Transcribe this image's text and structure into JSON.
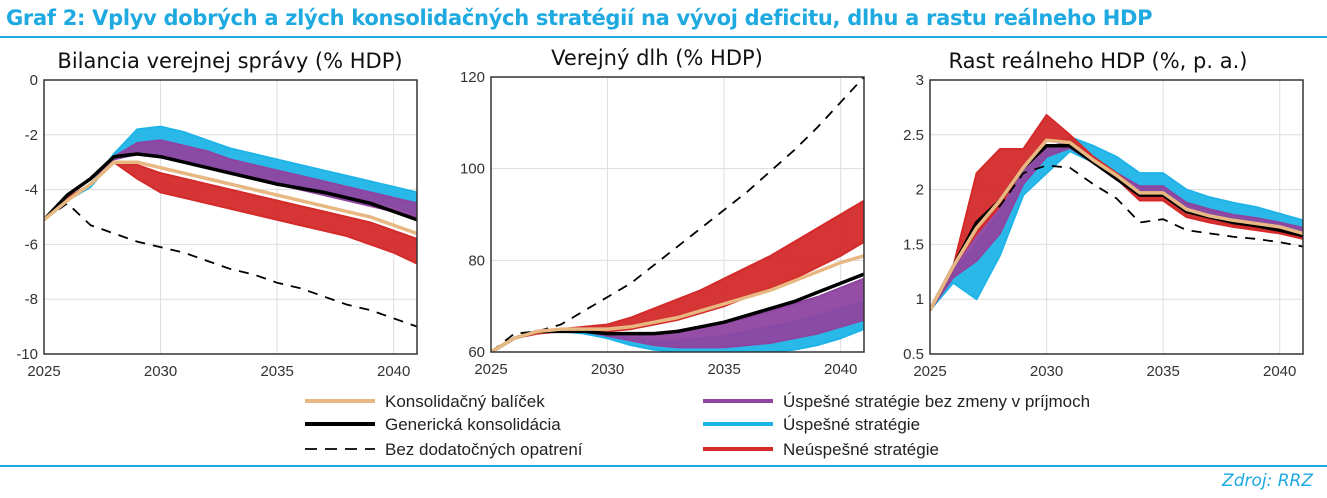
{
  "header": {
    "title": "Graf 2: Vplyv dobrých a zlých konsolidačných stratégií na vývoj deficitu, dlhu a rastu reálneho HDP"
  },
  "source": "Zdroj:  RRZ",
  "colors": {
    "konsolidacny": "#e8b882",
    "genericka": "#000000",
    "bez": "#000000",
    "uspesne_bez_prijmov": "#8e44a0",
    "uspesne": "#1fb4e8",
    "neuspesne": "#d42a2a",
    "accent": "#1ea9e1"
  },
  "legend": [
    {
      "key": "konsolidacny",
      "label": "Konsolidačný balíček",
      "style": "solid"
    },
    {
      "key": "genericka",
      "label": "Generická konsolidácia",
      "style": "solid-thick"
    },
    {
      "key": "bez",
      "label": "Bez dodatočných opatrení",
      "style": "dashed"
    },
    {
      "key": "uspesne_bez_prijmov",
      "label": "Úspešné stratégie bez zmeny v príjmoch",
      "style": "band"
    },
    {
      "key": "uspesne",
      "label": "Úspešné stratégie",
      "style": "band"
    },
    {
      "key": "neuspesne",
      "label": "Neúspešné stratégie",
      "style": "band"
    }
  ],
  "chart_data": [
    {
      "type": "line",
      "title": "Bilancia verejnej správy (% HDP)",
      "x": [
        2025,
        2026,
        2027,
        2028,
        2029,
        2030,
        2031,
        2032,
        2033,
        2034,
        2035,
        2036,
        2037,
        2038,
        2039,
        2040,
        2041
      ],
      "xticks": [
        2025,
        2030,
        2035,
        2040
      ],
      "xlim": [
        2025,
        2041
      ],
      "ylim": [
        -10,
        0
      ],
      "yticks": [
        0,
        -2,
        -4,
        -6,
        -8,
        -10
      ],
      "grid": true,
      "bands": {
        "uspesne": {
          "hi": [
            -5.1,
            -4.4,
            -3.8,
            -2.7,
            -1.8,
            -1.7,
            -1.9,
            -2.2,
            -2.5,
            -2.7,
            -2.9,
            -3.1,
            -3.3,
            -3.5,
            -3.7,
            -3.9,
            -4.1
          ],
          "lo": [
            -5.1,
            -4.4,
            -3.9,
            -2.9,
            -2.7,
            -2.7,
            -2.9,
            -3.1,
            -3.3,
            -3.5,
            -3.7,
            -3.9,
            -4.0,
            -4.2,
            -4.4,
            -4.6,
            -4.9
          ]
        },
        "uspesne_bez_prijmov": {
          "hi": [
            -5.1,
            -4.4,
            -3.8,
            -2.8,
            -2.3,
            -2.2,
            -2.4,
            -2.6,
            -2.9,
            -3.1,
            -3.3,
            -3.5,
            -3.7,
            -3.9,
            -4.1,
            -4.3,
            -4.5
          ],
          "lo": [
            -5.1,
            -4.4,
            -3.8,
            -2.9,
            -2.7,
            -2.8,
            -3.0,
            -3.2,
            -3.4,
            -3.6,
            -3.8,
            -4.0,
            -4.2,
            -4.4,
            -4.6,
            -4.8,
            -5.0
          ]
        },
        "neuspesne": {
          "hi": [
            -5.1,
            -4.3,
            -3.8,
            -3.0,
            -3.1,
            -3.4,
            -3.6,
            -3.8,
            -4.0,
            -4.2,
            -4.4,
            -4.6,
            -4.8,
            -5.0,
            -5.2,
            -5.5,
            -5.8
          ],
          "lo": [
            -5.1,
            -4.4,
            -3.8,
            -3.0,
            -3.6,
            -4.1,
            -4.3,
            -4.5,
            -4.7,
            -4.9,
            -5.1,
            -5.3,
            -5.5,
            -5.7,
            -6.0,
            -6.3,
            -6.7
          ]
        }
      },
      "lines": {
        "bez": [
          -5.1,
          -4.5,
          -5.3,
          -5.6,
          -5.9,
          -6.1,
          -6.3,
          -6.6,
          -6.9,
          -7.1,
          -7.4,
          -7.6,
          -7.9,
          -8.2,
          -8.4,
          -8.7,
          -9.0
        ],
        "genericka": [
          -5.1,
          -4.2,
          -3.6,
          -2.8,
          -2.7,
          -2.8,
          -3.0,
          -3.2,
          -3.4,
          -3.6,
          -3.8,
          -3.95,
          -4.1,
          -4.3,
          -4.5,
          -4.8,
          -5.1
        ],
        "konsolidacny": [
          -5.1,
          -4.4,
          -3.8,
          -3.0,
          -3.0,
          -3.2,
          -3.4,
          -3.6,
          -3.8,
          -4.0,
          -4.2,
          -4.4,
          -4.6,
          -4.8,
          -5.0,
          -5.3,
          -5.6
        ]
      }
    },
    {
      "type": "line",
      "title": "Verejný dlh (% HDP)",
      "x": [
        2025,
        2026,
        2027,
        2028,
        2029,
        2030,
        2031,
        2032,
        2033,
        2034,
        2035,
        2036,
        2037,
        2038,
        2039,
        2040,
        2041
      ],
      "xticks": [
        2025,
        2030,
        2035,
        2040
      ],
      "xlim": [
        2025,
        2041
      ],
      "ylim": [
        60,
        120
      ],
      "yticks": [
        60,
        80,
        100,
        120
      ],
      "grid": true,
      "bands": {
        "uspesne": {
          "hi": [
            60,
            63,
            64.5,
            65,
            65,
            64,
            63,
            62.5,
            62.5,
            63,
            63.5,
            64.5,
            65.5,
            66.5,
            68,
            69.5,
            71
          ],
          "lo": [
            60,
            63,
            64.5,
            64.5,
            64,
            63,
            61.5,
            60.5,
            60,
            60,
            60,
            60,
            60,
            60.5,
            61.5,
            63,
            65
          ]
        },
        "uspesne_bez_prijmov": {
          "hi": [
            60,
            63,
            64.5,
            64.5,
            64.5,
            64,
            64,
            64,
            64.5,
            65.5,
            66.5,
            67.5,
            69,
            70.5,
            72,
            74,
            76
          ],
          "lo": [
            60,
            63,
            64.5,
            64.5,
            64.5,
            63.5,
            62.5,
            61.5,
            61,
            61,
            61,
            61.5,
            62,
            63,
            64,
            65.5,
            67
          ]
        },
        "neuspesne": {
          "hi": [
            60,
            63,
            64,
            65,
            65.5,
            66,
            67.5,
            69.5,
            71.5,
            73.5,
            76,
            78.5,
            81,
            84,
            87,
            90,
            93
          ],
          "lo": [
            60,
            63,
            64,
            64.5,
            64.5,
            64.5,
            65,
            66,
            67,
            68.5,
            70,
            72,
            74,
            76,
            78.5,
            81,
            84
          ]
        }
      },
      "lines": {
        "bez": [
          60,
          64,
          64.5,
          66,
          69,
          72,
          75,
          79,
          83,
          87,
          91,
          95,
          99.5,
          104,
          109,
          114.5,
          120
        ],
        "genericka": [
          60,
          63,
          64.5,
          64.5,
          64.5,
          64,
          64,
          64,
          64.5,
          65.5,
          66.5,
          68,
          69.5,
          71,
          73,
          75,
          77
        ],
        "konsolidacny": [
          60,
          63,
          64.5,
          65,
          65,
          65,
          65.5,
          66.5,
          67.5,
          69,
          70.5,
          72,
          73.5,
          75.5,
          77.5,
          79.5,
          81
        ]
      }
    },
    {
      "type": "line",
      "title": "Rast reálneho HDP (%, p. a.)",
      "x": [
        2025,
        2026,
        2027,
        2028,
        2029,
        2030,
        2031,
        2032,
        2033,
        2034,
        2035,
        2036,
        2037,
        2038,
        2039,
        2040,
        2041
      ],
      "xticks": [
        2025,
        2030,
        2035,
        2040
      ],
      "xlim": [
        2025,
        2041
      ],
      "ylim": [
        0.5,
        3
      ],
      "yticks": [
        3,
        2.5,
        2,
        1.5,
        1,
        0.5
      ],
      "grid": true,
      "bands": {
        "uspesne": {
          "hi": [
            0.9,
            1.25,
            1.5,
            1.8,
            2.15,
            2.35,
            2.48,
            2.4,
            2.3,
            2.15,
            2.15,
            2.0,
            1.93,
            1.88,
            1.84,
            1.78,
            1.72
          ],
          "lo": [
            0.9,
            1.15,
            1.0,
            1.4,
            1.95,
            2.15,
            2.35,
            2.25,
            2.1,
            1.95,
            1.95,
            1.8,
            1.75,
            1.7,
            1.67,
            1.63,
            1.58
          ]
        },
        "uspesne_bez_prijmov": {
          "hi": [
            0.9,
            1.25,
            1.65,
            1.9,
            2.2,
            2.4,
            2.42,
            2.3,
            2.15,
            2.03,
            2.03,
            1.88,
            1.82,
            1.77,
            1.74,
            1.7,
            1.65
          ],
          "lo": [
            0.9,
            1.2,
            1.35,
            1.6,
            2.05,
            2.3,
            2.38,
            2.25,
            2.1,
            1.95,
            1.95,
            1.8,
            1.74,
            1.7,
            1.67,
            1.63,
            1.58
          ]
        },
        "neuspesne": {
          "hi": [
            0.9,
            1.3,
            2.15,
            2.37,
            2.37,
            2.68,
            2.5,
            2.3,
            2.15,
            1.97,
            1.97,
            1.8,
            1.73,
            1.68,
            1.65,
            1.62,
            1.57
          ],
          "lo": [
            0.9,
            1.3,
            1.6,
            1.85,
            2.2,
            2.45,
            2.45,
            2.25,
            2.1,
            1.9,
            1.9,
            1.75,
            1.7,
            1.66,
            1.63,
            1.6,
            1.55
          ]
        }
      },
      "lines": {
        "bez": [
          0.9,
          1.3,
          1.7,
          1.85,
          2.15,
          2.22,
          2.2,
          2.05,
          1.92,
          1.7,
          1.73,
          1.63,
          1.6,
          1.57,
          1.55,
          1.52,
          1.48
        ],
        "genericka": [
          0.9,
          1.3,
          1.7,
          1.9,
          2.2,
          2.4,
          2.4,
          2.25,
          2.1,
          1.95,
          1.95,
          1.8,
          1.75,
          1.7,
          1.67,
          1.63,
          1.58
        ],
        "konsolidacny": [
          0.9,
          1.3,
          1.65,
          1.9,
          2.2,
          2.45,
          2.43,
          2.27,
          2.13,
          1.97,
          1.97,
          1.82,
          1.76,
          1.72,
          1.69,
          1.66,
          1.6
        ]
      }
    }
  ]
}
